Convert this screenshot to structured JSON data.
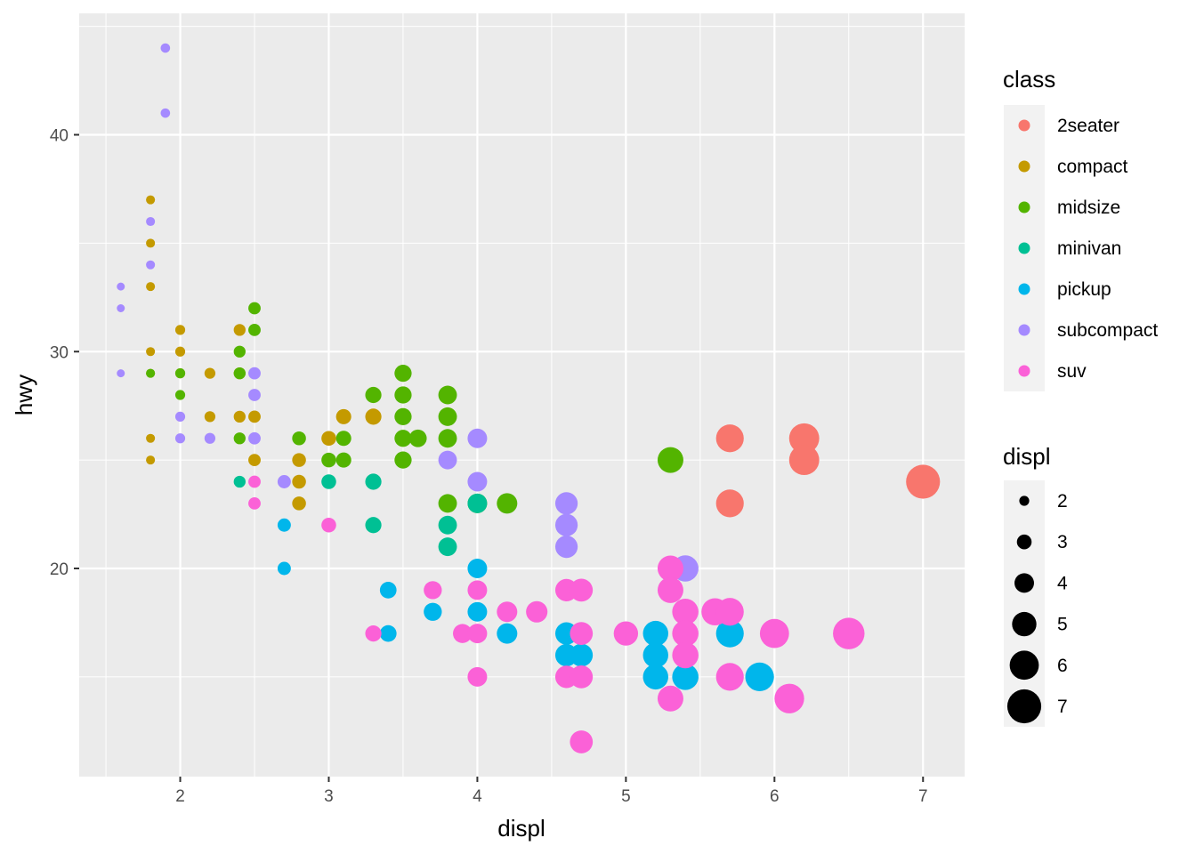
{
  "chart_data": {
    "type": "scatter",
    "title": "",
    "xlabel": "displ",
    "ylabel": "hwy",
    "xlim": [
      1.32,
      7.28
    ],
    "ylim": [
      10.4,
      45.6
    ],
    "x_ticks": [
      2,
      3,
      4,
      5,
      6,
      7
    ],
    "y_ticks": [
      20,
      30,
      40
    ],
    "grid": true,
    "legend_position": "right",
    "legends": {
      "color": {
        "title": "class",
        "entries": [
          {
            "label": "2seater",
            "color": "#F8766D"
          },
          {
            "label": "compact",
            "color": "#C49A00"
          },
          {
            "label": "midsize",
            "color": "#53B400"
          },
          {
            "label": "minivan",
            "color": "#00C094"
          },
          {
            "label": "pickup",
            "color": "#00B6EB"
          },
          {
            "label": "subcompact",
            "color": "#A58AFF"
          },
          {
            "label": "suv",
            "color": "#FB61D7"
          }
        ]
      },
      "size": {
        "title": "displ",
        "entries": [
          {
            "label": "2",
            "value": 2
          },
          {
            "label": "3",
            "value": 3
          },
          {
            "label": "4",
            "value": 4
          },
          {
            "label": "5",
            "value": 5
          },
          {
            "label": "6",
            "value": 6
          },
          {
            "label": "7",
            "value": 7
          }
        ]
      }
    },
    "series": [
      {
        "name": "2seater",
        "points": [
          [
            5.7,
            26
          ],
          [
            5.7,
            23
          ],
          [
            6.2,
            26
          ],
          [
            6.2,
            25
          ],
          [
            7.0,
            24
          ]
        ]
      },
      {
        "name": "compact",
        "points": [
          [
            1.8,
            37
          ],
          [
            1.8,
            35
          ],
          [
            1.8,
            33
          ],
          [
            1.8,
            30
          ],
          [
            1.8,
            29
          ],
          [
            1.8,
            26
          ],
          [
            1.8,
            25
          ],
          [
            2.0,
            31
          ],
          [
            2.0,
            30
          ],
          [
            2.0,
            29
          ],
          [
            2.2,
            29
          ],
          [
            2.2,
            27
          ],
          [
            2.4,
            31
          ],
          [
            2.4,
            29
          ],
          [
            2.4,
            27
          ],
          [
            2.5,
            27
          ],
          [
            2.5,
            25
          ],
          [
            2.8,
            25
          ],
          [
            2.8,
            24
          ],
          [
            2.8,
            23
          ],
          [
            3.0,
            26
          ],
          [
            3.1,
            27
          ],
          [
            3.3,
            27
          ]
        ]
      },
      {
        "name": "midsize",
        "points": [
          [
            1.8,
            29
          ],
          [
            2.0,
            29
          ],
          [
            2.0,
            28
          ],
          [
            2.4,
            30
          ],
          [
            2.4,
            29
          ],
          [
            2.4,
            26
          ],
          [
            2.5,
            32
          ],
          [
            2.5,
            31
          ],
          [
            2.8,
            26
          ],
          [
            3.0,
            25
          ],
          [
            3.1,
            26
          ],
          [
            3.1,
            25
          ],
          [
            3.3,
            28
          ],
          [
            3.5,
            29
          ],
          [
            3.5,
            28
          ],
          [
            3.5,
            27
          ],
          [
            3.5,
            26
          ],
          [
            3.5,
            25
          ],
          [
            3.6,
            26
          ],
          [
            3.8,
            28
          ],
          [
            3.8,
            27
          ],
          [
            3.8,
            26
          ],
          [
            3.8,
            23
          ],
          [
            4.0,
            23
          ],
          [
            4.2,
            23
          ],
          [
            5.3,
            25
          ]
        ]
      },
      {
        "name": "minivan",
        "points": [
          [
            2.4,
            24
          ],
          [
            3.0,
            24
          ],
          [
            3.3,
            24
          ],
          [
            3.3,
            22
          ],
          [
            3.8,
            22
          ],
          [
            3.8,
            21
          ],
          [
            4.0,
            23
          ]
        ]
      },
      {
        "name": "pickup",
        "points": [
          [
            2.7,
            22
          ],
          [
            2.7,
            20
          ],
          [
            3.4,
            19
          ],
          [
            3.4,
            17
          ],
          [
            3.7,
            18
          ],
          [
            4.0,
            20
          ],
          [
            4.0,
            18
          ],
          [
            4.2,
            17
          ],
          [
            4.6,
            17
          ],
          [
            4.6,
            16
          ],
          [
            4.7,
            16
          ],
          [
            5.2,
            17
          ],
          [
            5.2,
            16
          ],
          [
            5.2,
            15
          ],
          [
            5.4,
            15
          ],
          [
            5.7,
            17
          ],
          [
            5.9,
            15
          ]
        ]
      },
      {
        "name": "subcompact",
        "points": [
          [
            1.6,
            33
          ],
          [
            1.6,
            32
          ],
          [
            1.6,
            29
          ],
          [
            1.8,
            36
          ],
          [
            1.8,
            34
          ],
          [
            1.9,
            44
          ],
          [
            1.9,
            41
          ],
          [
            2.0,
            27
          ],
          [
            2.0,
            26
          ],
          [
            2.2,
            26
          ],
          [
            2.5,
            29
          ],
          [
            2.5,
            28
          ],
          [
            2.5,
            26
          ],
          [
            2.7,
            24
          ],
          [
            3.8,
            25
          ],
          [
            4.0,
            26
          ],
          [
            4.0,
            24
          ],
          [
            4.6,
            23
          ],
          [
            4.6,
            22
          ],
          [
            4.6,
            21
          ],
          [
            5.4,
            20
          ]
        ]
      },
      {
        "name": "suv",
        "points": [
          [
            2.5,
            24
          ],
          [
            2.5,
            23
          ],
          [
            3.0,
            22
          ],
          [
            3.3,
            17
          ],
          [
            3.7,
            19
          ],
          [
            3.9,
            17
          ],
          [
            4.0,
            19
          ],
          [
            4.0,
            17
          ],
          [
            4.0,
            15
          ],
          [
            4.2,
            18
          ],
          [
            4.4,
            18
          ],
          [
            4.6,
            19
          ],
          [
            4.6,
            15
          ],
          [
            4.7,
            19
          ],
          [
            4.7,
            17
          ],
          [
            4.7,
            15
          ],
          [
            4.7,
            12
          ],
          [
            5.0,
            17
          ],
          [
            5.3,
            20
          ],
          [
            5.3,
            19
          ],
          [
            5.3,
            14
          ],
          [
            5.4,
            18
          ],
          [
            5.4,
            17
          ],
          [
            5.4,
            16
          ],
          [
            5.6,
            18
          ],
          [
            5.7,
            18
          ],
          [
            5.7,
            15
          ],
          [
            6.0,
            17
          ],
          [
            6.1,
            14
          ],
          [
            6.5,
            17
          ]
        ]
      }
    ]
  }
}
